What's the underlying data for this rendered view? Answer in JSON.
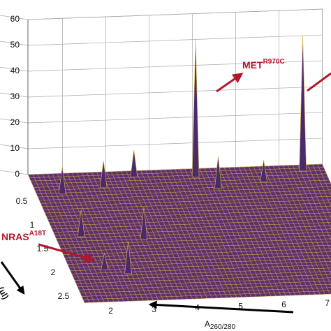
{
  "chart_data": {
    "type": "surface3d",
    "xlim": [
      1.2,
      8
    ],
    "ylim": [
      0,
      2.7
    ],
    "zlim": [
      0,
      60
    ],
    "xticks": [
      2,
      3,
      4,
      5,
      6,
      7
    ],
    "yticks": [
      0.5,
      1,
      1.5,
      2,
      2.5
    ],
    "zticks": [
      0,
      10,
      20,
      30,
      40,
      50,
      60
    ],
    "x_label": {
      "main": "A",
      "sub": "260/280"
    },
    "y_label": "(µl)",
    "surface_color": "#5e2f6c",
    "mesh_color": "#d9b84a",
    "peak_color": "#4a2a6c",
    "grid": true,
    "peaks": {
      "x": [
        1.8,
        2.8,
        3.6,
        5.0,
        5.4,
        6.5,
        7.5,
        1.8,
        3.2,
        2.5,
        2.0
      ],
      "y": [
        0.4,
        0.3,
        0.1,
        0.15,
        0.4,
        0.3,
        0.1,
        1.3,
        1.4,
        2.1,
        2.0
      ],
      "z": [
        10,
        10,
        10,
        53,
        12,
        8,
        52,
        10,
        12,
        12,
        6
      ]
    },
    "annotations": [
      {
        "text": "MET",
        "sup": "R970C"
      },
      {
        "text": "NRAS",
        "sup": "A18T"
      }
    ]
  }
}
